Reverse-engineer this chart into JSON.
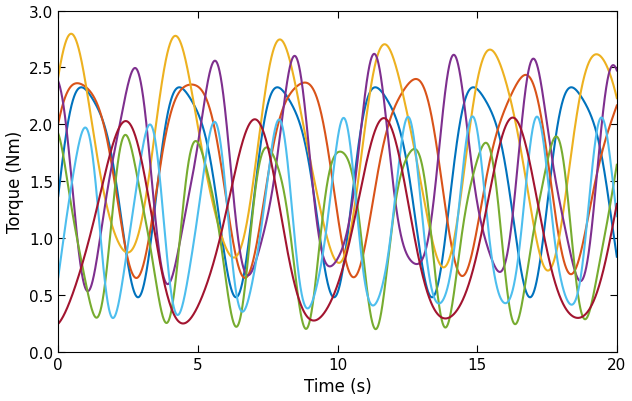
{
  "title": "",
  "xlabel": "Time (s)",
  "ylabel": "Torque (Nm)",
  "xlim": [
    0,
    20
  ],
  "ylim": [
    0,
    3
  ],
  "xticks": [
    0,
    5,
    10,
    15,
    20
  ],
  "yticks": [
    0,
    0.5,
    1.0,
    1.5,
    2.0,
    2.5,
    3.0
  ],
  "figsize": [
    6.32,
    4.02
  ],
  "dpi": 100,
  "colors": [
    "#0072BD",
    "#D95319",
    "#EDB120",
    "#7E2F8E",
    "#77AC30",
    "#4DBEEE",
    "#A2142F"
  ],
  "line_width": 1.5
}
